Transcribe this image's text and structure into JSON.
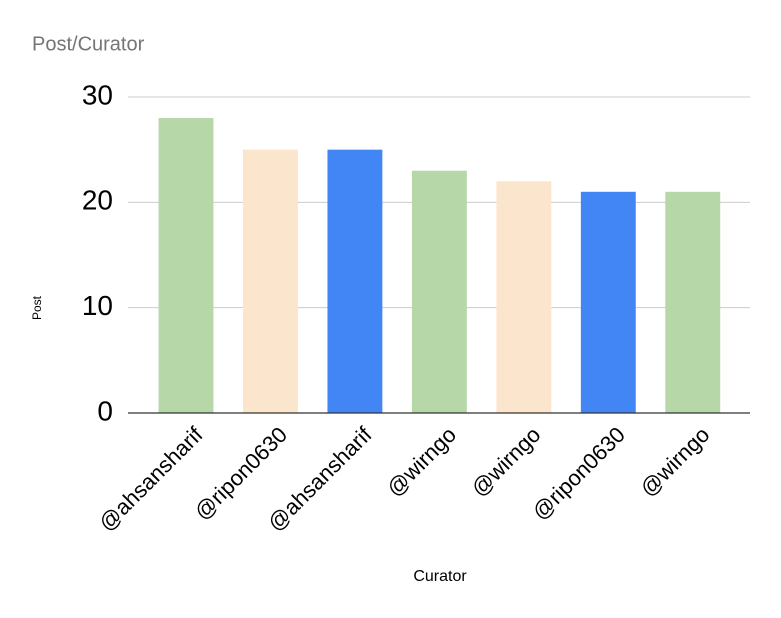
{
  "chart_data": {
    "type": "bar",
    "title": "Post/Curator",
    "x_label": "Curator",
    "y_label": "Post",
    "categories": [
      "@ahsansharif",
      "@ripon0630",
      "@ahsansharif",
      "@wirngo",
      "@wirngo",
      "@ripon0630",
      "@wirngo"
    ],
    "values": [
      28,
      25,
      25,
      23,
      22,
      21,
      21
    ],
    "colors": [
      "#b6d7a8",
      "#fce5cd",
      "#4285f4",
      "#b6d7a8",
      "#fce5cd",
      "#4285f4",
      "#b6d7a8"
    ],
    "ylim": [
      0,
      30
    ],
    "yticks": [
      0,
      10,
      20,
      30
    ],
    "grid": true
  }
}
